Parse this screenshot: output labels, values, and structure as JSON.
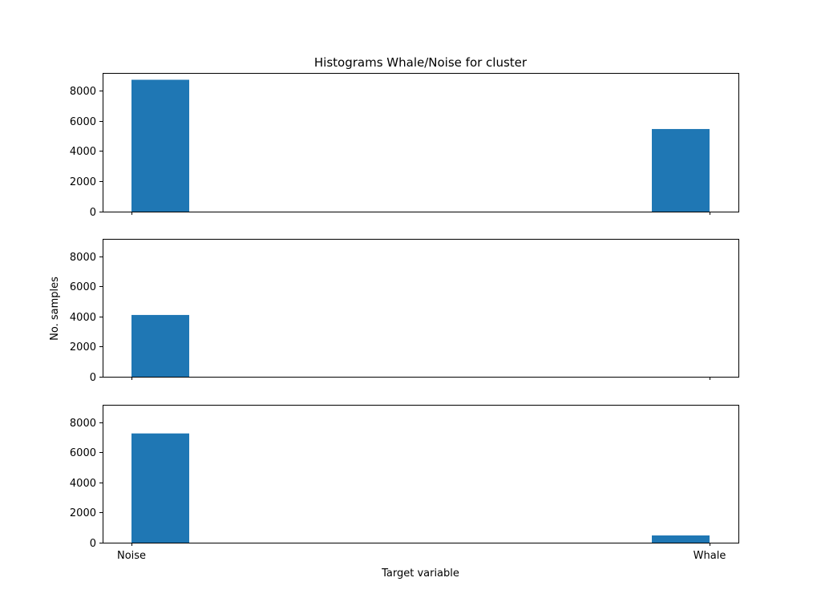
{
  "chart_data": {
    "type": "bar",
    "title": "Histograms Whale/Noise for cluster",
    "xlabel": "Target variable",
    "ylabel": "No. samples",
    "categories": [
      "Noise",
      "Whale"
    ],
    "ylim": [
      0,
      9150
    ],
    "yticks": [
      0,
      2000,
      4000,
      6000,
      8000
    ],
    "shared_x": true,
    "grid": false,
    "colors": {
      "bar": "#1f77b4",
      "axes": "#000000",
      "background": "#ffffff"
    },
    "panels": [
      {
        "values": [
          8700,
          5450
        ]
      },
      {
        "values": [
          4100,
          0
        ]
      },
      {
        "values": [
          7250,
          480
        ]
      }
    ]
  }
}
